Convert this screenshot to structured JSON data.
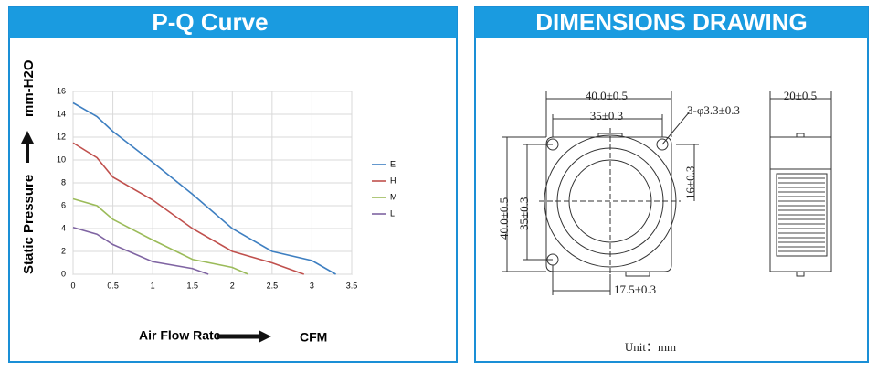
{
  "panels": {
    "left_title": "P-Q Curve",
    "right_title": "DIMENSIONS DRAWING"
  },
  "chart_data": {
    "type": "line",
    "x_label": "Air Flow Rate",
    "x_unit": "CFM",
    "y_label": "Static Pressure",
    "y_unit": "mm-H2O",
    "xlim": [
      0,
      3.5
    ],
    "xticks": [
      0,
      0.5,
      1,
      1.5,
      2,
      2.5,
      3,
      3.5
    ],
    "ylim": [
      0,
      16
    ],
    "yticks": [
      0,
      2,
      4,
      6,
      8,
      10,
      12,
      14,
      16
    ],
    "grid": true,
    "legend": "right",
    "series": [
      {
        "name": "E",
        "color": "#3e7fc1",
        "x": [
          0,
          0.3,
          0.5,
          1,
          1.5,
          2,
          2.5,
          3,
          3.3
        ],
        "values": [
          15,
          13.8,
          12.5,
          9.8,
          7,
          4,
          2,
          1.2,
          0
        ]
      },
      {
        "name": "H",
        "color": "#c0504d",
        "x": [
          0,
          0.3,
          0.5,
          1,
          1.5,
          2,
          2.5,
          2.9
        ],
        "values": [
          11.5,
          10.2,
          8.5,
          6.5,
          4,
          2,
          1,
          0
        ]
      },
      {
        "name": "M",
        "color": "#9bbb59",
        "x": [
          0,
          0.3,
          0.5,
          1,
          1.5,
          2,
          2.2
        ],
        "values": [
          6.6,
          6,
          4.8,
          3,
          1.3,
          0.6,
          0
        ]
      },
      {
        "name": "L",
        "color": "#7f64a2",
        "x": [
          0,
          0.3,
          0.5,
          1,
          1.5,
          1.7
        ],
        "values": [
          4.1,
          3.5,
          2.6,
          1.1,
          0.5,
          0
        ]
      }
    ]
  },
  "drawing": {
    "labels": [
      "40.0±0.5",
      "35±0.3",
      "3-φ3.3±0.3",
      "16±0.3",
      "40.0±0.5",
      "35±0.3",
      "17.5±0.3",
      "20±0.5"
    ],
    "unit": "Unit：mm"
  }
}
